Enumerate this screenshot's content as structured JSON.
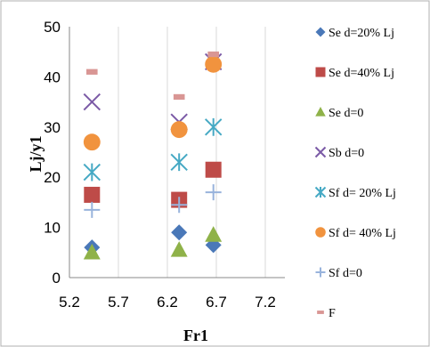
{
  "chart_data": {
    "type": "scatter",
    "title": "",
    "xlabel": "Fr1",
    "ylabel": "Lj/y1",
    "xlim": [
      5.2,
      7.4
    ],
    "ylim": [
      0,
      50
    ],
    "xticks": [
      "5.2",
      "5.7",
      "6.2",
      "6.7",
      "7.2"
    ],
    "yticks": [
      "0",
      "10",
      "20",
      "30",
      "40",
      "50"
    ],
    "grid": "vertical",
    "legend": "right",
    "series": [
      {
        "name": "Se d=20% Lj",
        "marker": "diamond",
        "color": "#4a78b8",
        "points": [
          [
            5.43,
            6.0
          ],
          [
            6.32,
            9.0
          ],
          [
            6.67,
            6.5
          ]
        ]
      },
      {
        "name": "Se d=40% Lj",
        "marker": "square",
        "color": "#be4b48",
        "points": [
          [
            5.43,
            16.5
          ],
          [
            6.32,
            15.5
          ],
          [
            6.67,
            21.5
          ]
        ]
      },
      {
        "name": "Se d=0",
        "marker": "triangle",
        "color": "#8fb249",
        "points": [
          [
            5.43,
            5.0
          ],
          [
            6.32,
            5.5
          ],
          [
            6.67,
            8.5
          ]
        ]
      },
      {
        "name": "Sb d=0",
        "marker": "x",
        "color": "#7b5aa6",
        "points": [
          [
            5.43,
            35.0
          ],
          [
            6.32,
            31.0
          ],
          [
            6.67,
            43.0
          ]
        ]
      },
      {
        "name": "Sf d= 20% Lj",
        "marker": "asterisk",
        "color": "#46a9c4",
        "points": [
          [
            5.43,
            21.0
          ],
          [
            6.32,
            23.0
          ],
          [
            6.67,
            30.0
          ]
        ]
      },
      {
        "name": "Sf d= 40% Lj",
        "marker": "circle",
        "color": "#f1933e",
        "points": [
          [
            5.43,
            27.0
          ],
          [
            6.32,
            29.5
          ],
          [
            6.67,
            42.5
          ]
        ]
      },
      {
        "name": "Sf d=0",
        "marker": "plus",
        "color": "#98b3dc",
        "points": [
          [
            5.43,
            13.5
          ],
          [
            6.32,
            14.5
          ],
          [
            6.67,
            17.0
          ]
        ]
      },
      {
        "name": "F",
        "marker": "dash",
        "color": "#d99694",
        "points": [
          [
            5.43,
            41.0
          ],
          [
            6.32,
            36.0
          ],
          [
            6.67,
            44.5
          ]
        ]
      }
    ]
  }
}
